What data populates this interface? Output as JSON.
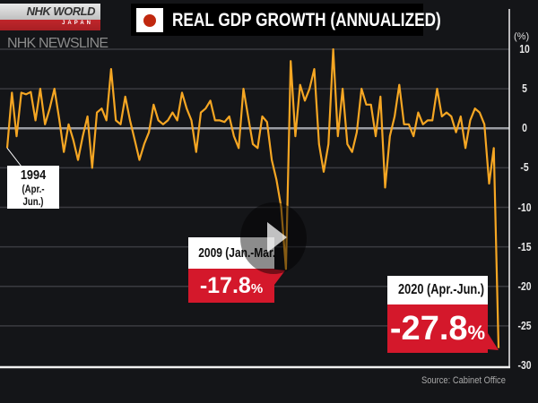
{
  "branding": {
    "logo": "NHK WORLD",
    "logo_sub": "JAPAN",
    "program": "NHK NEWSLINE"
  },
  "flag_icon": "japan-flag-icon",
  "colors": {
    "line": "#f5a623",
    "background": "#141518",
    "callout_red": "#d4182b",
    "flag_red": "#c0280f"
  },
  "chart_data": {
    "type": "line",
    "title": "REAL GDP GROWTH (ANNUALIZED)",
    "ylabel": "(%)",
    "ylim": [
      -30,
      10
    ],
    "yticks": [
      "10",
      "5",
      "0",
      "-5",
      "-10",
      "-15",
      "-20",
      "-25",
      "-30"
    ],
    "grid": true,
    "x_start": "1994 Apr.-Jun.",
    "x_end": "2020 Apr.-Jun.",
    "x_frequency": "quarterly",
    "values": [
      -2.5,
      4.5,
      -1.0,
      4.5,
      4.3,
      4.6,
      1.0,
      5.0,
      0.5,
      2.5,
      5.0,
      1.2,
      -3.0,
      0.5,
      -1.5,
      -4.0,
      -1.0,
      1.5,
      -5.0,
      2.0,
      2.5,
      1.0,
      7.5,
      1.0,
      0.5,
      4.0,
      1.0,
      -1.5,
      -4.0,
      -2.0,
      -0.5,
      3.0,
      1.0,
      0.5,
      1.0,
      2.0,
      1.0,
      4.5,
      2.5,
      1.0,
      -3.0,
      2.0,
      2.5,
      3.5,
      1.0,
      1.0,
      0.8,
      1.5,
      -1.0,
      -2.5,
      5.0,
      1.5,
      -2.0,
      -2.5,
      1.5,
      0.8,
      -4.0,
      -6.5,
      -10.0,
      -17.8,
      8.5,
      -1.0,
      5.5,
      3.5,
      5.0,
      7.5,
      -2.0,
      -5.5,
      -2.0,
      10.0,
      -1.0,
      5.0,
      -2.0,
      -3.0,
      -0.5,
      5.0,
      3.0,
      3.0,
      -1.0,
      4.0,
      -7.5,
      -1.0,
      1.5,
      5.5,
      0.5,
      0.5,
      -1.0,
      2.0,
      0.5,
      1.0,
      1.0,
      5.0,
      1.5,
      2.0,
      1.5,
      -0.5,
      1.5,
      -2.5,
      1.0,
      2.5,
      2.0,
      0.5,
      -7.0,
      -2.5,
      -27.8
    ],
    "annotations": [
      {
        "period": "1994",
        "sub": "(Apr.-Jun.)"
      },
      {
        "period": "2009 (Jan.-Mar.)",
        "value": "-17.8",
        "unit": "%"
      },
      {
        "period": "2020 (Apr.-Jun.)",
        "value": "-27.8",
        "unit": "%"
      }
    ],
    "source": "Source: Cabinet Office"
  }
}
